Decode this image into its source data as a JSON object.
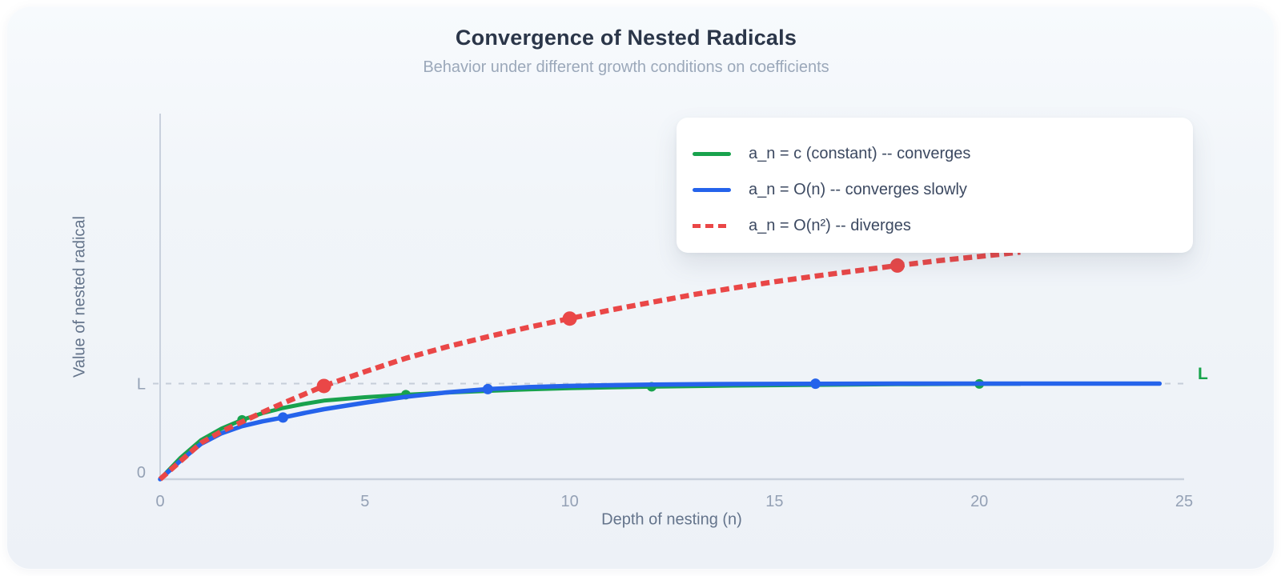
{
  "header": {
    "title": "Convergence of Nested Radicals",
    "subtitle": "Behavior under different growth conditions on coefficients"
  },
  "colors": {
    "green": "#18a24d",
    "blue": "#2563eb",
    "red": "#ea4747",
    "axis_line": "#c9d1dd",
    "tick_label": "#94a1b5",
    "axis_title": "#64748b",
    "reference_line": "#c5cdd9",
    "reference_label_right": "#16a34a",
    "legend_text": "#3c4961",
    "legend_background": "#ffffff"
  },
  "chart_data": {
    "type": "line",
    "title": "Convergence of Nested Radicals",
    "subtitle": "Behavior under different growth conditions on coefficients",
    "xlabel": "Depth of nesting (n)",
    "ylabel": "Value of nested radical",
    "xlim": [
      0,
      25
    ],
    "ylim": [
      0,
      3.82
    ],
    "x_ticks": [
      0,
      5,
      10,
      15,
      20,
      25
    ],
    "y_ticks": [
      {
        "value": 0,
        "label": "0"
      },
      {
        "value": 1,
        "label": "L"
      }
    ],
    "grid": false,
    "legend_position": "top-right",
    "reference_line": {
      "value": 1,
      "style": "dashed",
      "right_label": "L"
    },
    "series": [
      {
        "name": "constant",
        "label": "a_n = c (constant) -- converges",
        "color": "#18a24d",
        "style": "solid",
        "line_width": 5,
        "marker_radius": 6,
        "points": [
          [
            0,
            0
          ],
          [
            0.5,
            0.225
          ],
          [
            1,
            0.41
          ],
          [
            1.5,
            0.53
          ],
          [
            2,
            0.62
          ],
          [
            2.5,
            0.69
          ],
          [
            3,
            0.745
          ],
          [
            3.5,
            0.787
          ],
          [
            4,
            0.822
          ],
          [
            5,
            0.858
          ],
          [
            6,
            0.884
          ],
          [
            7,
            0.906
          ],
          [
            8,
            0.924
          ],
          [
            9,
            0.94
          ],
          [
            10,
            0.952
          ],
          [
            11,
            0.96
          ],
          [
            12,
            0.967
          ],
          [
            14,
            0.979
          ],
          [
            16,
            0.987
          ],
          [
            18,
            0.993
          ],
          [
            20,
            0.9965
          ],
          [
            21,
            0.998
          ]
        ],
        "markers": [
          [
            2,
            0.62
          ],
          [
            6,
            0.884
          ],
          [
            12,
            0.967
          ],
          [
            20,
            0.9965
          ]
        ]
      },
      {
        "name": "linear-growth",
        "label": "a_n = O(n) -- converges slowly",
        "color": "#2563eb",
        "style": "solid",
        "line_width": 5.5,
        "marker_radius": 6.5,
        "points": [
          [
            0,
            0
          ],
          [
            0.5,
            0.195
          ],
          [
            1,
            0.37
          ],
          [
            1.5,
            0.48
          ],
          [
            2,
            0.555
          ],
          [
            2.5,
            0.605
          ],
          [
            3,
            0.645
          ],
          [
            3.5,
            0.69
          ],
          [
            4,
            0.732
          ],
          [
            5,
            0.8
          ],
          [
            6,
            0.862
          ],
          [
            7,
            0.908
          ],
          [
            8,
            0.942
          ],
          [
            9,
            0.963
          ],
          [
            10,
            0.976
          ],
          [
            12,
            0.99
          ],
          [
            14,
            0.996
          ],
          [
            16,
            0.9985
          ],
          [
            18,
            1.0
          ],
          [
            20,
            1.0
          ],
          [
            22,
            1.0
          ],
          [
            24.4,
            1.0
          ]
        ],
        "markers": [
          [
            3,
            0.645
          ],
          [
            8,
            0.942
          ],
          [
            16,
            0.9985
          ]
        ]
      },
      {
        "name": "quadratic-growth",
        "label": "a_n = O(n²) -- diverges",
        "color": "#ea4747",
        "style": "dashed",
        "line_width": 6.5,
        "marker_radius": 9,
        "points": [
          [
            0,
            0
          ],
          [
            0.5,
            0.19
          ],
          [
            1,
            0.38
          ],
          [
            1.5,
            0.5
          ],
          [
            2,
            0.6
          ],
          [
            2.5,
            0.7
          ],
          [
            3,
            0.795
          ],
          [
            3.5,
            0.885
          ],
          [
            4,
            0.975
          ],
          [
            4.5,
            1.05
          ],
          [
            5,
            1.125
          ],
          [
            6,
            1.265
          ],
          [
            7,
            1.385
          ],
          [
            8,
            1.49
          ],
          [
            9,
            1.59
          ],
          [
            10,
            1.68
          ],
          [
            11,
            1.77
          ],
          [
            12,
            1.85
          ],
          [
            13,
            1.93
          ],
          [
            14,
            2.0
          ],
          [
            15,
            2.065
          ],
          [
            16,
            2.125
          ],
          [
            17,
            2.18
          ],
          [
            18,
            2.235
          ],
          [
            19,
            2.285
          ],
          [
            20,
            2.33
          ],
          [
            21,
            2.375
          ]
        ],
        "markers": [
          [
            4,
            0.975
          ],
          [
            10,
            1.68
          ],
          [
            18,
            2.235
          ]
        ]
      }
    ]
  }
}
